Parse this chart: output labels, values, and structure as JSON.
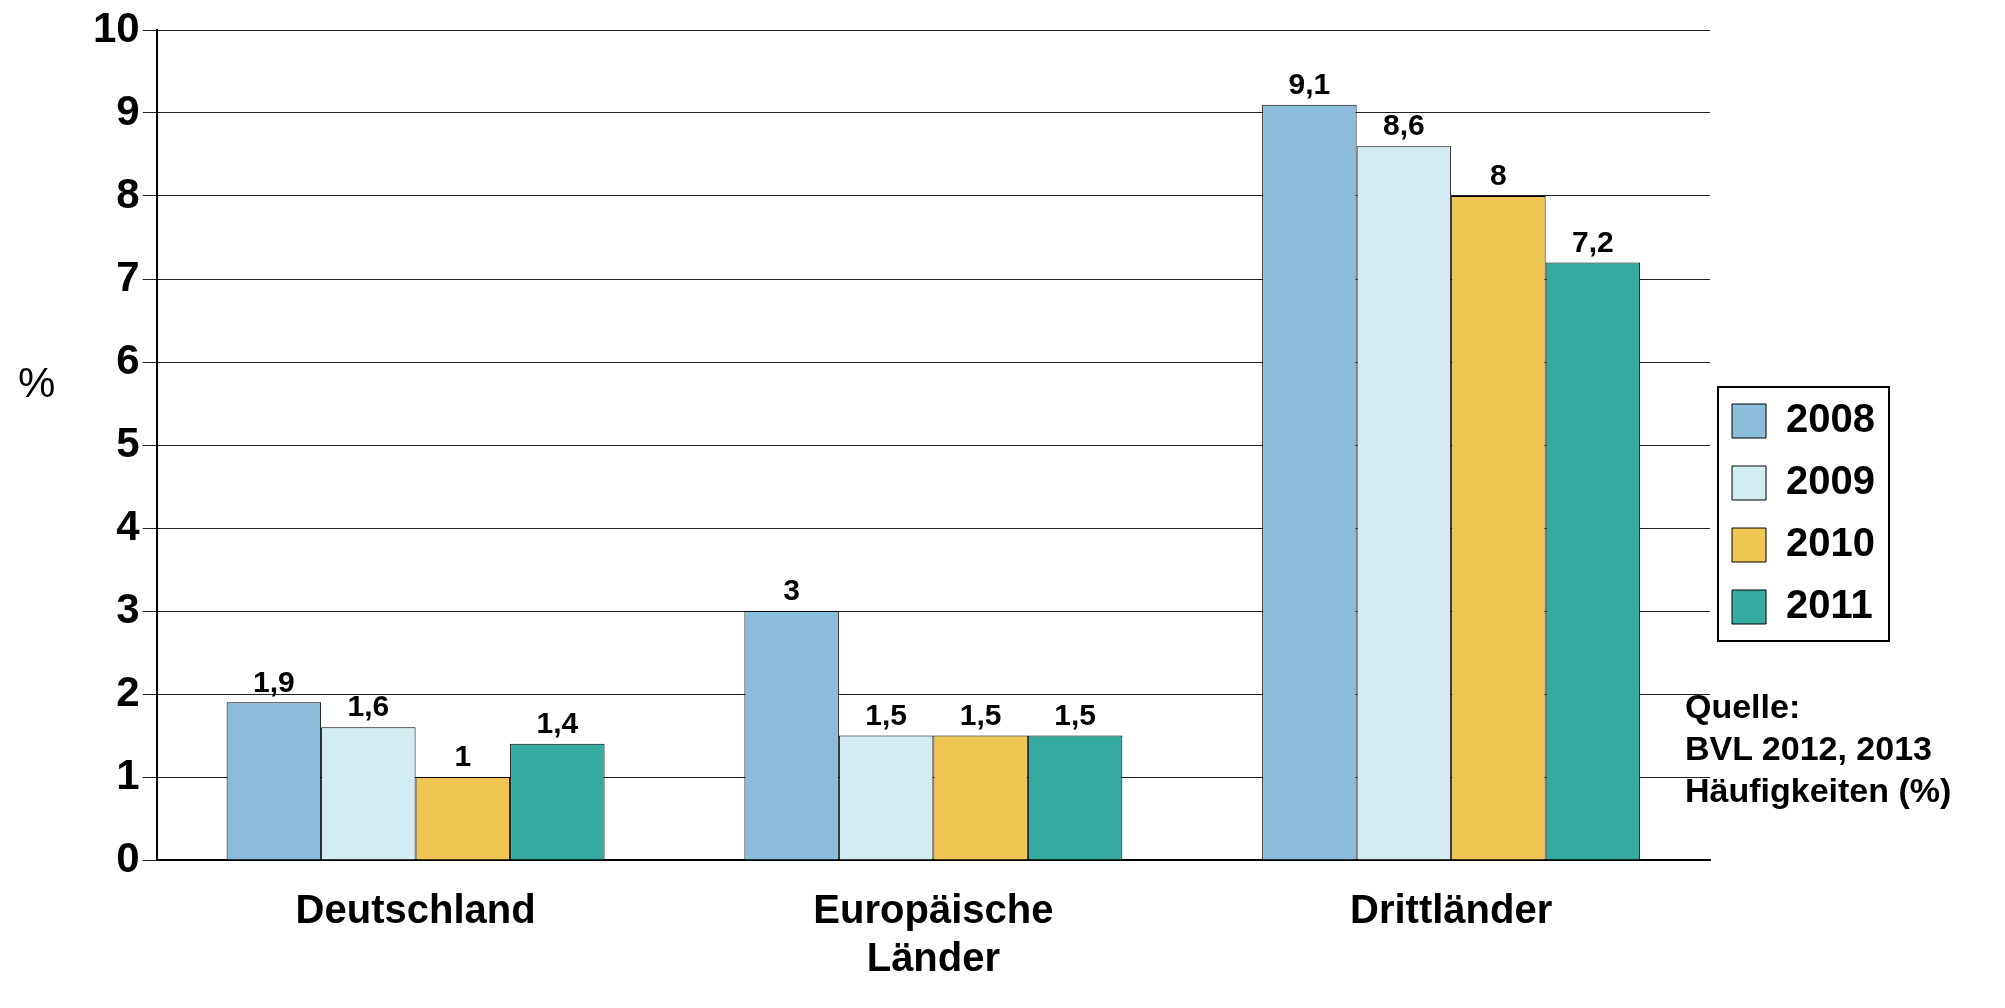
{
  "chart_data": {
    "type": "bar",
    "ylabel": "%",
    "categories": [
      "Deutschland",
      "Europäische Länder",
      "Drittländer"
    ],
    "series": [
      {
        "name": "2008",
        "color": "#8bbcd9",
        "values": [
          1.9,
          3,
          9.1
        ],
        "value_labels": [
          "1,9",
          "3",
          "9,1"
        ]
      },
      {
        "name": "2009",
        "color": "#d2ecf2",
        "values": [
          1.6,
          1.5,
          8.6
        ],
        "value_labels": [
          "1,6",
          "1,5",
          "8,6"
        ]
      },
      {
        "name": "2010",
        "color": "#efc653",
        "values": [
          1,
          1.5,
          8
        ],
        "value_labels": [
          "1",
          "1,5",
          "8"
        ]
      },
      {
        "name": "2011",
        "color": "#35ab9f",
        "values": [
          1.4,
          1.5,
          7.2
        ],
        "value_labels": [
          "1,4",
          "1,5",
          "7,2"
        ]
      }
    ],
    "ylim": [
      0,
      10
    ],
    "yticks": [
      0,
      1,
      2,
      3,
      4,
      5,
      6,
      7,
      8,
      9,
      10
    ],
    "grid": "y",
    "legend": "right",
    "annotations": [
      "Quelle:",
      "BVL 2012, 2013",
      "Häufigkeiten (%)"
    ]
  }
}
